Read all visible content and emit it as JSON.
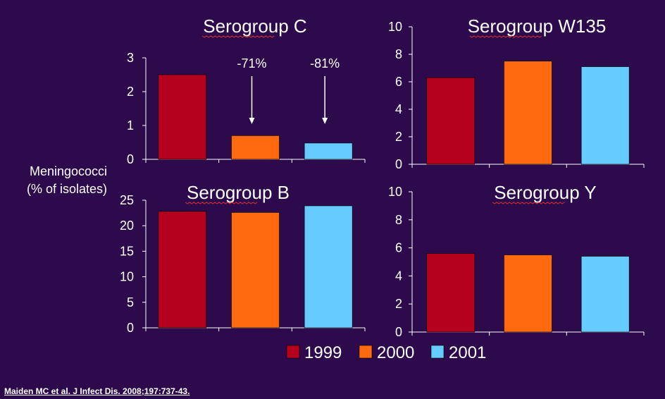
{
  "y_label_line1": "Meningococci",
  "y_label_line2": "(% of isolates)",
  "citation": "Maiden MC et al. J Infect Dis. 2008;197:737-43.",
  "legend": [
    {
      "label": "1999",
      "color": "#b5001e"
    },
    {
      "label": "2000",
      "color": "#ff6a10"
    },
    {
      "label": "2001",
      "color": "#66ccff"
    }
  ],
  "chart_data": [
    {
      "type": "bar",
      "title": "Serogroup C",
      "categories": [
        "1999",
        "2000",
        "2001"
      ],
      "values": [
        2.5,
        0.7,
        0.48
      ],
      "ylim": [
        0,
        3
      ],
      "yticks": [
        0,
        1,
        2,
        3
      ],
      "annotations": [
        {
          "category": "2000",
          "text": "-71%"
        },
        {
          "category": "2001",
          "text": "-81%"
        }
      ]
    },
    {
      "type": "bar",
      "title": "Serogroup W135",
      "categories": [
        "1999",
        "2000",
        "2001"
      ],
      "values": [
        6.3,
        7.5,
        7.1
      ],
      "ylim": [
        0,
        10
      ],
      "yticks": [
        0,
        2,
        4,
        6,
        8,
        10
      ]
    },
    {
      "type": "bar",
      "title": "Serogroup B",
      "categories": [
        "1999",
        "2000",
        "2001"
      ],
      "values": [
        22.8,
        22.6,
        23.9
      ],
      "ylim": [
        0,
        25
      ],
      "yticks": [
        0,
        5,
        10,
        15,
        20,
        25
      ]
    },
    {
      "type": "bar",
      "title": "Serogroup Y",
      "categories": [
        "1999",
        "2000",
        "2001"
      ],
      "values": [
        5.6,
        5.5,
        5.4
      ],
      "ylim": [
        0,
        10
      ],
      "yticks": [
        0,
        2,
        4,
        6,
        8,
        10
      ]
    }
  ]
}
